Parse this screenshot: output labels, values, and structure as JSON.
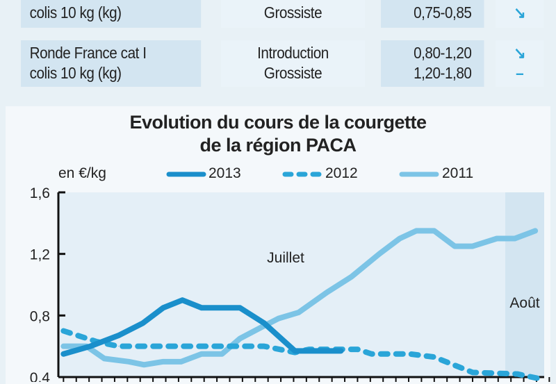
{
  "table": {
    "rows": [
      {
        "product": [
          "colis 10 kg (kg)"
        ],
        "stage": [
          "Grossiste"
        ],
        "price": [
          "0,75-0,85"
        ],
        "trend": [
          "↘"
        ]
      },
      {
        "product": [
          "Ronde France cat I",
          "colis 10 kg (kg)"
        ],
        "stage": [
          "Introduction",
          "Grossiste"
        ],
        "price": [
          "0,80-1,20",
          "1,20-1,80"
        ],
        "trend": [
          "↘",
          "–"
        ]
      }
    ]
  },
  "chart_data": {
    "type": "line",
    "title": "Evolution du cours de la courgette",
    "subtitle": "de la région PACA",
    "ylabel": "en €/kg",
    "ylim": [
      0.4,
      1.6
    ],
    "xlim": [
      0,
      38
    ],
    "yticks": [
      "1,6",
      "1,2",
      "0,8",
      "0,4"
    ],
    "ytick_values": [
      1.6,
      1.2,
      0.8,
      0.4
    ],
    "annotations": [
      "Juillet",
      "Août"
    ],
    "grid": false,
    "legend_position": "top",
    "series": [
      {
        "name": "2013",
        "color": "#1a8fcb",
        "dash": false,
        "x": [
          0.4,
          2.5,
          4.7,
          6.6,
          8.2,
          9.7,
          11.2,
          14.2,
          16.1,
          18.5,
          22.1
        ],
        "y": [
          0.55,
          0.6,
          0.67,
          0.75,
          0.85,
          0.9,
          0.85,
          0.85,
          0.75,
          0.57,
          0.57
        ]
      },
      {
        "name": "2012",
        "color": "#2aa5d8",
        "dash": true,
        "x": [
          0.4,
          3.0,
          4.7,
          16.1,
          18.5,
          19.6,
          23.4,
          24.5,
          27.5,
          29.4,
          32.4,
          35.9,
          37.6
        ],
        "y": [
          0.7,
          0.63,
          0.6,
          0.6,
          0.56,
          0.58,
          0.58,
          0.55,
          0.55,
          0.53,
          0.43,
          0.42,
          0.39
        ]
      },
      {
        "name": "2011",
        "color": "#7cc4e6",
        "dash": false,
        "x": [
          0.4,
          2.2,
          3.6,
          5.5,
          6.7,
          8.2,
          9.6,
          11.2,
          12.8,
          14.2,
          15.8,
          17.2,
          18.8,
          21,
          22.9,
          25.1,
          26.7,
          28,
          29.4,
          31,
          32.4,
          34.3,
          35.7,
          37.3
        ],
        "y": [
          0.6,
          0.6,
          0.52,
          0.5,
          0.48,
          0.5,
          0.5,
          0.55,
          0.55,
          0.65,
          0.72,
          0.78,
          0.82,
          0.95,
          1.05,
          1.2,
          1.3,
          1.35,
          1.35,
          1.25,
          1.25,
          1.3,
          1.3,
          1.35
        ]
      }
    ]
  }
}
